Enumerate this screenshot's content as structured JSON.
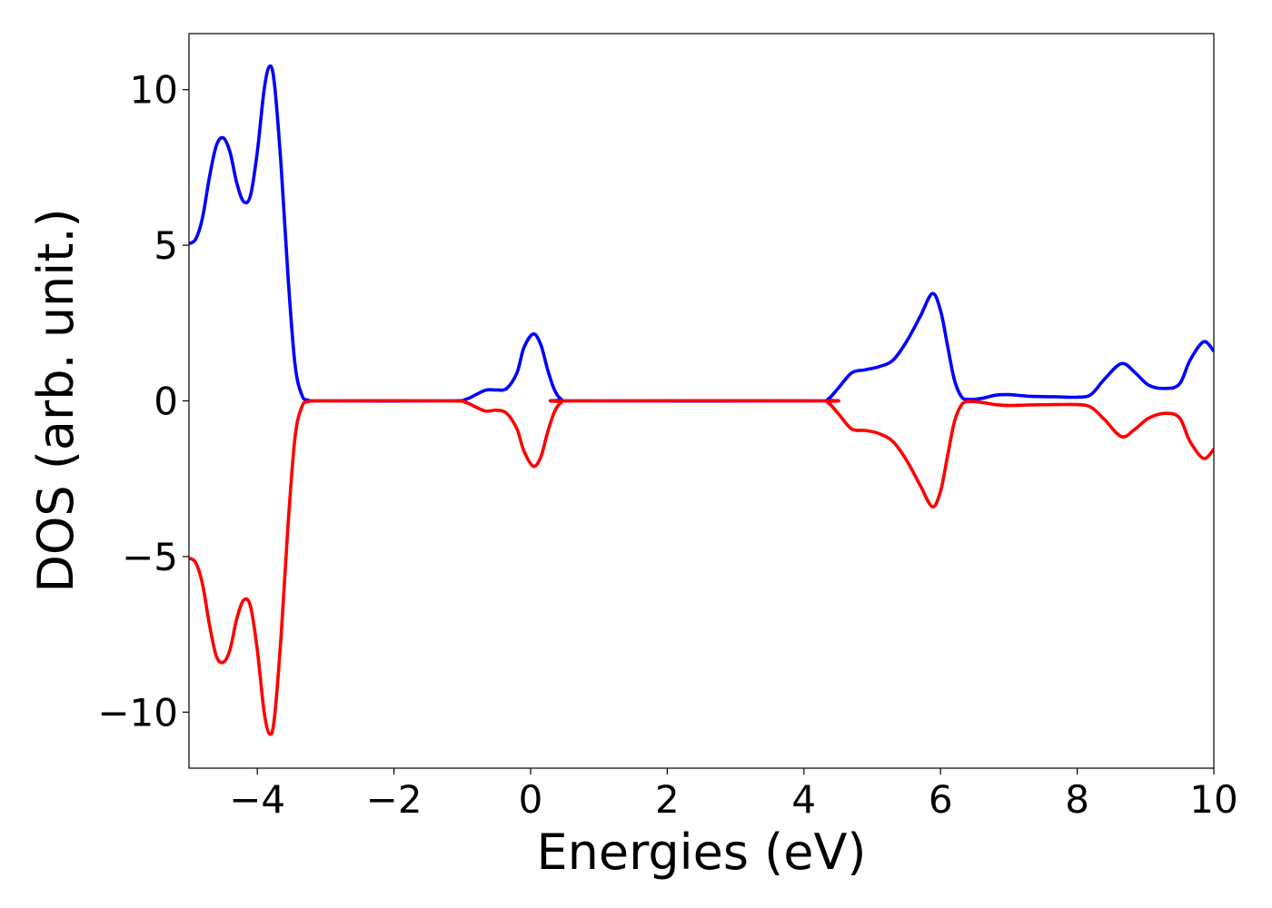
{
  "chart_data": {
    "type": "line",
    "title": "",
    "xlabel": "Energies (eV)",
    "ylabel": "DOS (arb. unit.)",
    "xlim": [
      -5,
      10
    ],
    "ylim": [
      -11.8,
      11.8
    ],
    "grid": false,
    "legend": "none",
    "x_ticks": [
      -4,
      -2,
      0,
      2,
      4,
      6,
      8,
      10
    ],
    "x_tick_labels": [
      "−4",
      "−2",
      "0",
      "2",
      "4",
      "6",
      "8",
      "10"
    ],
    "y_ticks": [
      -10,
      -5,
      0,
      5,
      10
    ],
    "y_tick_labels": [
      "−10",
      "−5",
      "0",
      "5",
      "10"
    ],
    "series": [
      {
        "color": "#0000ff",
        "points": [
          [
            -5.0,
            5.05
          ],
          [
            -4.9,
            5.2
          ],
          [
            -4.8,
            5.9
          ],
          [
            -4.7,
            7.2
          ],
          [
            -4.6,
            8.2
          ],
          [
            -4.5,
            8.45
          ],
          [
            -4.4,
            8.0
          ],
          [
            -4.3,
            7.0
          ],
          [
            -4.2,
            6.4
          ],
          [
            -4.1,
            6.6
          ],
          [
            -4.0,
            8.0
          ],
          [
            -3.9,
            10.0
          ],
          [
            -3.82,
            10.75
          ],
          [
            -3.75,
            10.2
          ],
          [
            -3.65,
            7.5
          ],
          [
            -3.55,
            4.0
          ],
          [
            -3.45,
            1.2
          ],
          [
            -3.35,
            0.2
          ],
          [
            -3.25,
            0.02
          ],
          [
            -3.0,
            0.0
          ],
          [
            -1.2,
            0.0
          ],
          [
            -0.95,
            0.05
          ],
          [
            -0.8,
            0.2
          ],
          [
            -0.65,
            0.35
          ],
          [
            -0.5,
            0.35
          ],
          [
            -0.35,
            0.4
          ],
          [
            -0.2,
            0.9
          ],
          [
            -0.1,
            1.7
          ],
          [
            0.04,
            2.15
          ],
          [
            0.15,
            1.8
          ],
          [
            0.25,
            1.0
          ],
          [
            0.35,
            0.35
          ],
          [
            0.45,
            0.05
          ],
          [
            0.6,
            0.0
          ],
          [
            4.2,
            0.0
          ],
          [
            4.35,
            0.05
          ],
          [
            4.5,
            0.4
          ],
          [
            4.7,
            0.9
          ],
          [
            4.9,
            1.0
          ],
          [
            5.1,
            1.1
          ],
          [
            5.3,
            1.3
          ],
          [
            5.5,
            1.9
          ],
          [
            5.7,
            2.7
          ],
          [
            5.88,
            3.45
          ],
          [
            6.0,
            2.9
          ],
          [
            6.1,
            1.8
          ],
          [
            6.2,
            0.7
          ],
          [
            6.3,
            0.15
          ],
          [
            6.4,
            0.05
          ],
          [
            6.6,
            0.08
          ],
          [
            6.8,
            0.18
          ],
          [
            7.0,
            0.2
          ],
          [
            7.3,
            0.15
          ],
          [
            7.7,
            0.13
          ],
          [
            8.0,
            0.12
          ],
          [
            8.2,
            0.2
          ],
          [
            8.4,
            0.7
          ],
          [
            8.65,
            1.2
          ],
          [
            8.85,
            0.9
          ],
          [
            9.05,
            0.5
          ],
          [
            9.3,
            0.4
          ],
          [
            9.5,
            0.55
          ],
          [
            9.65,
            1.3
          ],
          [
            9.85,
            1.9
          ],
          [
            10.0,
            1.6
          ]
        ]
      },
      {
        "color": "#ff0000",
        "points": [
          [
            -5.0,
            -5.05
          ],
          [
            -4.9,
            -5.2
          ],
          [
            -4.8,
            -5.9
          ],
          [
            -4.7,
            -7.2
          ],
          [
            -4.6,
            -8.2
          ],
          [
            -4.5,
            -8.4
          ],
          [
            -4.4,
            -8.0
          ],
          [
            -4.3,
            -7.0
          ],
          [
            -4.2,
            -6.4
          ],
          [
            -4.1,
            -6.6
          ],
          [
            -4.0,
            -8.0
          ],
          [
            -3.9,
            -10.0
          ],
          [
            -3.82,
            -10.7
          ],
          [
            -3.75,
            -10.2
          ],
          [
            -3.65,
            -7.5
          ],
          [
            -3.55,
            -4.0
          ],
          [
            -3.45,
            -1.2
          ],
          [
            -3.35,
            -0.2
          ],
          [
            -3.25,
            -0.02
          ],
          [
            -3.0,
            0.0
          ],
          [
            -1.2,
            0.0
          ],
          [
            -0.95,
            -0.05
          ],
          [
            -0.8,
            -0.2
          ],
          [
            -0.65,
            -0.33
          ],
          [
            -0.5,
            -0.3
          ],
          [
            -0.35,
            -0.4
          ],
          [
            -0.2,
            -0.9
          ],
          [
            -0.1,
            -1.6
          ],
          [
            0.04,
            -2.1
          ],
          [
            0.15,
            -1.8
          ],
          [
            0.25,
            -1.0
          ],
          [
            0.35,
            -0.35
          ],
          [
            0.45,
            -0.05
          ],
          [
            0.6,
            0.0
          ],
          [
            4.2,
            0.0
          ],
          [
            4.35,
            -0.05
          ],
          [
            4.5,
            -0.4
          ],
          [
            4.7,
            -0.9
          ],
          [
            4.9,
            -0.95
          ],
          [
            5.1,
            -1.05
          ],
          [
            5.3,
            -1.3
          ],
          [
            5.5,
            -1.9
          ],
          [
            5.7,
            -2.7
          ],
          [
            5.88,
            -3.4
          ],
          [
            6.0,
            -2.9
          ],
          [
            6.1,
            -1.8
          ],
          [
            6.2,
            -0.7
          ],
          [
            6.3,
            -0.15
          ],
          [
            6.4,
            -0.02
          ],
          [
            6.6,
            -0.05
          ],
          [
            6.8,
            -0.12
          ],
          [
            7.0,
            -0.15
          ],
          [
            7.3,
            -0.13
          ],
          [
            7.7,
            -0.12
          ],
          [
            8.0,
            -0.12
          ],
          [
            8.2,
            -0.2
          ],
          [
            8.4,
            -0.6
          ],
          [
            8.65,
            -1.15
          ],
          [
            8.85,
            -0.9
          ],
          [
            9.05,
            -0.55
          ],
          [
            9.3,
            -0.4
          ],
          [
            9.5,
            -0.55
          ],
          [
            9.65,
            -1.3
          ],
          [
            9.85,
            -1.85
          ],
          [
            10.0,
            -1.55
          ]
        ]
      }
    ]
  }
}
